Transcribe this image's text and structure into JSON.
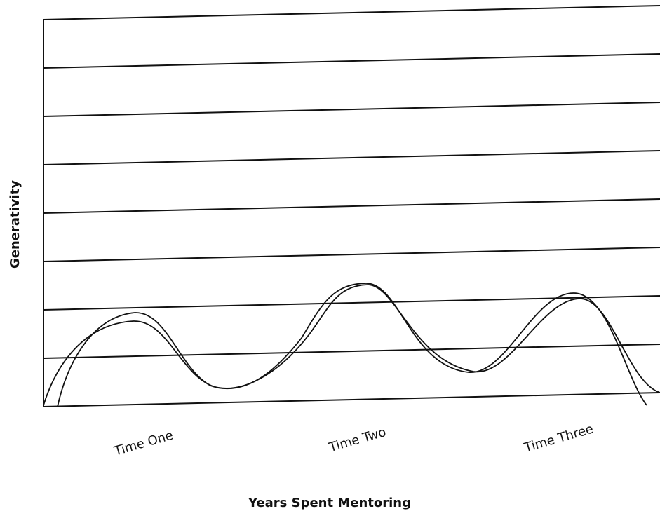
{
  "chart_data": {
    "type": "line",
    "categories": [
      "Time One",
      "Time Two",
      "Time Three"
    ],
    "xlabel": "Years Spent Mentoring",
    "ylabel": "Generativity",
    "grid": true
  }
}
